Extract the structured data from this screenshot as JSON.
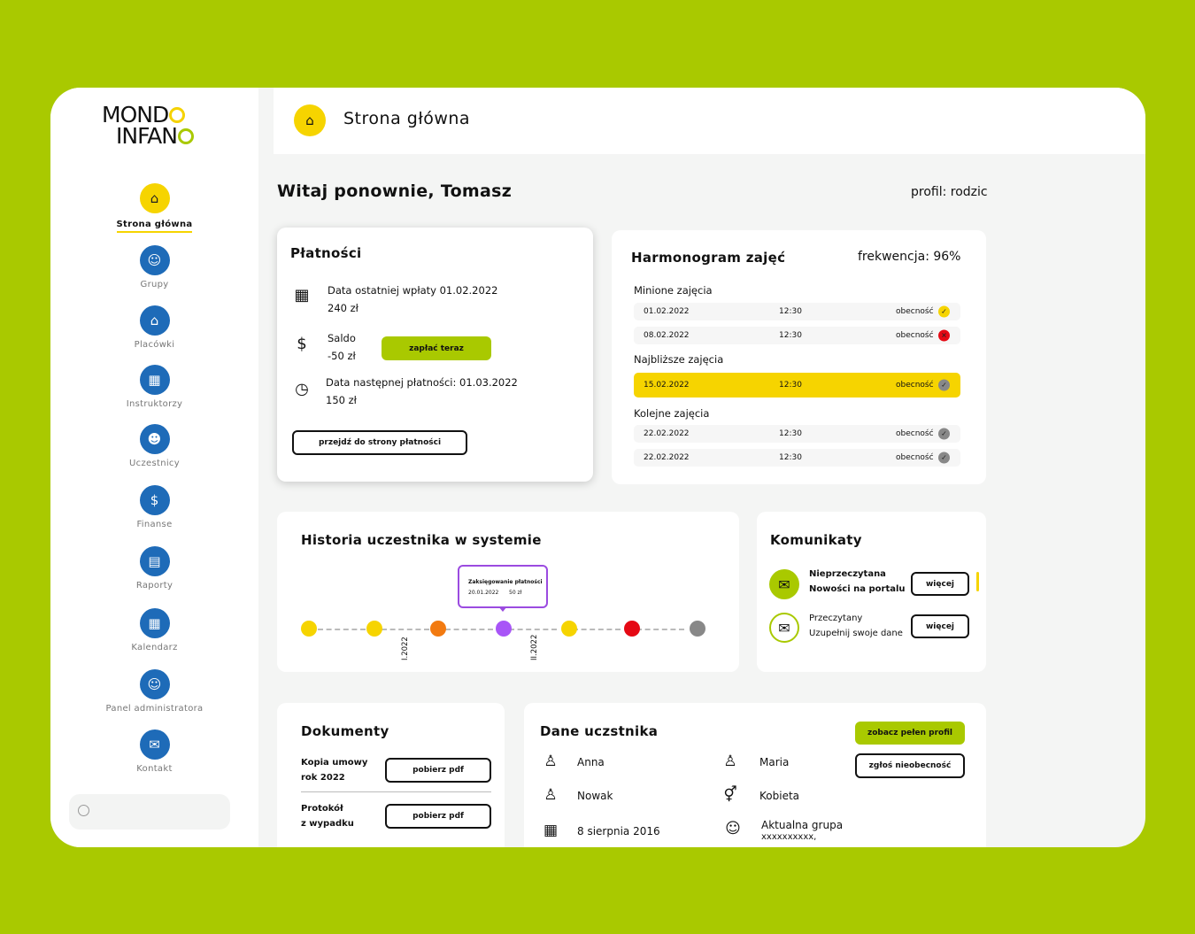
{
  "app": {
    "logo_line1": "MOND",
    "logo_line2": "INFAN"
  },
  "sidebar": {
    "items": [
      {
        "label": "Strona główna",
        "icon": "home-icon"
      },
      {
        "label": "Grupy",
        "icon": "group-icon"
      },
      {
        "label": "Placówki",
        "icon": "building-icon"
      },
      {
        "label": "Instruktorzy",
        "icon": "instructor-icon"
      },
      {
        "label": "Uczestnicy",
        "icon": "participants-icon"
      },
      {
        "label": "Finanse",
        "icon": "finance-icon"
      },
      {
        "label": "Raporty",
        "icon": "reports-icon"
      },
      {
        "label": "Kalendarz",
        "icon": "calendar-icon"
      },
      {
        "label": "Panel administratora",
        "icon": "admin-icon"
      },
      {
        "label": "Kontakt",
        "icon": "contact-icon"
      }
    ],
    "search_placeholder": ""
  },
  "header": {
    "title": "Strona główna"
  },
  "welcome": "Witaj ponownie, Tomasz",
  "profile": "profil: rodzic",
  "payments": {
    "title": "Płatności",
    "last_label": "Data ostatniej wpłaty 01.02.2022",
    "last_amount": "240 zł",
    "balance_label": "Saldo",
    "balance_amount": "-50 zł",
    "pay_button": "zapłać teraz",
    "next_label": "Data następnej płatności: 01.03.2022",
    "next_amount": "150 zł",
    "goto_button": "przejdź do strony płatności"
  },
  "schedule": {
    "title": "Harmonogram zajęć",
    "attendance": "frekwencja: 96%",
    "past_label": "Minione zajęcia",
    "past": [
      {
        "date": "01.02.2022",
        "time": "12:30",
        "status": "obecność",
        "state": "present"
      },
      {
        "date": "08.02.2022",
        "time": "12:30",
        "status": "obecność",
        "state": "absent"
      }
    ],
    "nearest_label": "Najbliższe zajęcia",
    "nearest": {
      "date": "15.02.2022",
      "time": "12:30",
      "status": "obecność"
    },
    "next_label": "Kolejne zajęcia",
    "next": [
      {
        "date": "22.02.2022",
        "time": "12:30",
        "status": "obecność"
      },
      {
        "date": "22.02.2022",
        "time": "12:30",
        "status": "obecność"
      }
    ]
  },
  "history": {
    "title": "Historia uczestnika w systemie",
    "tooltip_title": "Zaksięgowanie płatności",
    "tooltip_date": "20.01.2022",
    "tooltip_amount": "50 zł",
    "tick1": "I.2022",
    "tick2": "II.2022",
    "dot_colors": [
      "#f6d400",
      "#f6d400",
      "#f27a10",
      "#a855f7",
      "#f6d400",
      "#e50914",
      "#888888"
    ]
  },
  "messages": {
    "title": "Komunikaty",
    "items": [
      {
        "status": "Nieprzeczytana",
        "text": "Nowości na portalu",
        "button": "więcej"
      },
      {
        "status": "Przeczytany",
        "text": "Uzupełnij swoje dane",
        "button": "więcej"
      }
    ]
  },
  "documents": {
    "title": "Dokumenty",
    "items": [
      {
        "line1": "Kopia umowy",
        "line2": "rok 2022",
        "button": "pobierz pdf"
      },
      {
        "line1": "Protokół",
        "line2": "z wypadku",
        "button": "pobierz pdf"
      }
    ]
  },
  "participant": {
    "title": "Dane uczstnika",
    "profile_button": "zobacz pełen profil",
    "absence_button": "zgłoś nieobecność",
    "first_name": "Anna",
    "last_name": "Nowak",
    "birth_date": "8 sierpnia 2016",
    "parent_name": "Maria",
    "gender": "Kobieta",
    "group_label": "Aktualna grupa",
    "group_value": "xxxxxxxxxx,"
  },
  "colors": {
    "background": "#a9c900",
    "accent_yellow": "#f6d400",
    "accent_green": "#a9c900",
    "nav_blue": "#1e6bb8"
  }
}
